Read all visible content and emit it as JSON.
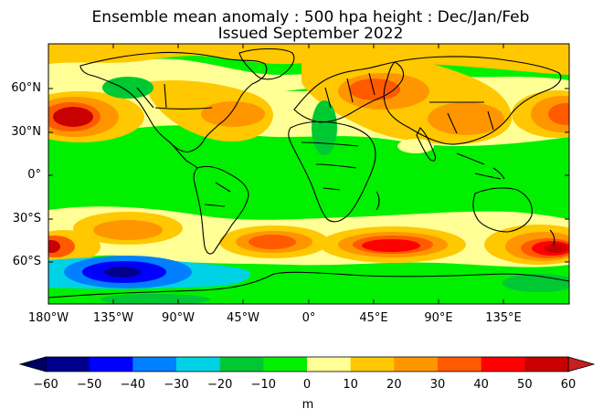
{
  "title": {
    "line1": "Ensemble mean anomaly : 500 hpa height : Dec/Jan/Feb",
    "line2": "Issued September 2022"
  },
  "axes": {
    "lat_labels": [
      "60°N",
      "30°N",
      "0°",
      "30°S",
      "60°S"
    ],
    "lon_labels": [
      "180°W",
      "135°W",
      "90°W",
      "45°W",
      "0°",
      "45°E",
      "90°E",
      "135°E"
    ]
  },
  "colorbar": {
    "ticks": [
      "−60",
      "−50",
      "−40",
      "−30",
      "−20",
      "−10",
      "0",
      "10",
      "20",
      "30",
      "40",
      "50",
      "60"
    ],
    "colors": [
      "#00008c",
      "#0000ff",
      "#0080ff",
      "#00d2e6",
      "#00c832",
      "#00f000",
      "#ffff96",
      "#ffc800",
      "#ff9600",
      "#ff5a00",
      "#ff0000",
      "#c80000"
    ],
    "under_color": "#000064",
    "over_color": "#c81e1e",
    "unit": "m"
  }
}
